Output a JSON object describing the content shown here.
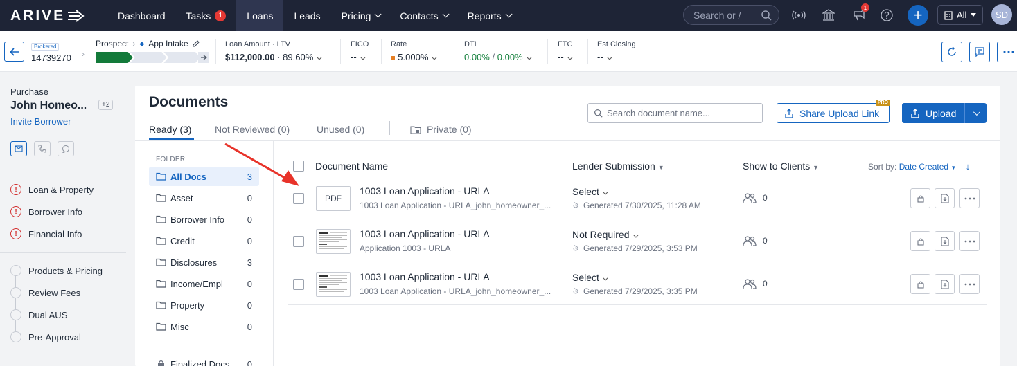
{
  "nav": {
    "logo": "ARIVE",
    "items": [
      {
        "label": "Dashboard"
      },
      {
        "label": "Tasks",
        "badge": "1"
      },
      {
        "label": "Loans",
        "active": true
      },
      {
        "label": "Leads"
      },
      {
        "label": "Pricing",
        "dropdown": true
      },
      {
        "label": "Contacts",
        "dropdown": true
      },
      {
        "label": "Reports",
        "dropdown": true
      }
    ],
    "search_placeholder": "Search or /",
    "notif_badge": "1",
    "scope": "All",
    "avatar_initials": "SD"
  },
  "loan": {
    "brokered": "Brokered",
    "number": "14739270",
    "stage": "Prospect",
    "substage": "App Intake",
    "amount_label": "Loan Amount",
    "ltv_label": "LTV",
    "amount": "$112,000.00",
    "dot": "·",
    "ltv": "89.60%",
    "fico_label": "FICO",
    "fico": "--",
    "rate_label": "Rate",
    "rate": "5.000%",
    "dti_label": "DTI",
    "dti_front": "0.00%",
    "dti_sep": "/",
    "dti_back": "0.00%",
    "ftc_label": "FTC",
    "ftc": "--",
    "closing_label": "Est Closing",
    "closing": "--",
    "progress_complete": 0.33
  },
  "sidebar": {
    "purpose": "Purchase",
    "borrower": "John Homeo...",
    "extra": "+2",
    "invite": "Invite Borrower",
    "warn_items": [
      {
        "label": "Loan & Property"
      },
      {
        "label": "Borrower Info"
      },
      {
        "label": "Financial Info"
      }
    ],
    "steps": [
      {
        "label": "Products & Pricing"
      },
      {
        "label": "Review Fees"
      },
      {
        "label": "Dual AUS"
      },
      {
        "label": "Pre-Approval"
      }
    ]
  },
  "documents": {
    "title": "Documents",
    "tabs": [
      {
        "label": "Ready (3)"
      },
      {
        "label": "Not Reviewed (0)"
      },
      {
        "label": "Unused (0)"
      },
      {
        "label": "Private (0)"
      }
    ],
    "search_placeholder": "Search document name...",
    "share_label": "Share Upload Link",
    "pro": "PRO",
    "upload_label": "Upload",
    "folder_header": "FOLDER",
    "folders": [
      {
        "label": "All Docs",
        "count": "3"
      },
      {
        "label": "Asset",
        "count": "0"
      },
      {
        "label": "Borrower Info",
        "count": "0"
      },
      {
        "label": "Credit",
        "count": "0"
      },
      {
        "label": "Disclosures",
        "count": "3"
      },
      {
        "label": "Income/Empl",
        "count": "0"
      },
      {
        "label": "Property",
        "count": "0"
      },
      {
        "label": "Misc",
        "count": "0"
      }
    ],
    "finalized": {
      "label": "Finalized Docs",
      "count": "0"
    },
    "columns": {
      "name": "Document Name",
      "lender": "Lender Submission",
      "clients": "Show to Clients",
      "sort_label": "Sort by:",
      "sort_value": "Date Created"
    },
    "rows": [
      {
        "thumb": "PDF",
        "name": "1003 Loan Application - URLA",
        "sub": "1003 Loan Application - URLA_john_homeowner_...",
        "lender": "Select",
        "generated": "Generated 7/30/2025, 11:28 AM",
        "clients": "0"
      },
      {
        "thumb": "",
        "name": "1003 Loan Application - URLA",
        "sub": "Application 1003 - URLA",
        "lender": "Not Required",
        "generated": "Generated 7/29/2025, 3:53 PM",
        "clients": "0"
      },
      {
        "thumb": "",
        "name": "1003 Loan Application - URLA",
        "sub": "1003 Loan Application - URLA_john_homeowner_...",
        "lender": "Select",
        "generated": "Generated 7/29/2025, 3:35 PM",
        "clients": "0"
      }
    ]
  },
  "colors": {
    "nav_bg": "#1e2436",
    "accent": "#1565c0",
    "progress_green": "#137a3a",
    "warning_red": "#d32f2f",
    "annotation_arrow": "#e8332a"
  }
}
